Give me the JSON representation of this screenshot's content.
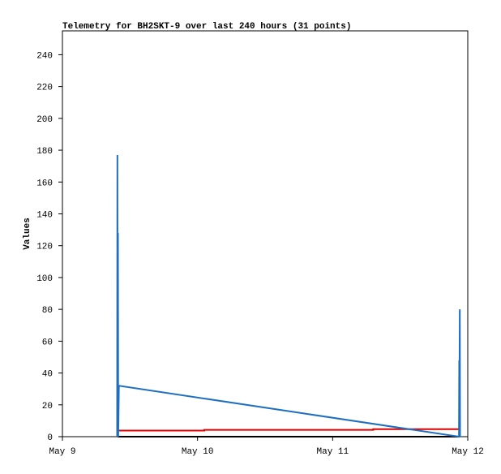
{
  "chart_data": {
    "type": "line",
    "title": "Telemetry for BH2SKT-9 over last 240 hours (31 points)",
    "y_label": "Values",
    "xlim": [
      0,
      3
    ],
    "xticks": [
      {
        "value": 0,
        "label": "May 9"
      },
      {
        "value": 1,
        "label": "May 10"
      },
      {
        "value": 2,
        "label": "May 11"
      },
      {
        "value": 3,
        "label": "May 12"
      }
    ],
    "ylim": [
      0,
      255
    ],
    "yticks": [
      0,
      20,
      40,
      60,
      80,
      100,
      120,
      140,
      160,
      180,
      200,
      220,
      240
    ],
    "grid": false,
    "series": [
      {
        "color": "#000000",
        "x": [
          0.41,
          2.94
        ],
        "values": [
          0,
          0
        ]
      },
      {
        "color": "#dd0000",
        "x": [
          0.41,
          1.05,
          1.05,
          2.3,
          2.3,
          2.94
        ],
        "values": [
          3.8,
          3.8,
          4.3,
          4.3,
          4.7,
          4.7
        ]
      },
      {
        "color": "#1f6fc1",
        "x": [
          0.405,
          0.407,
          0.409,
          0.411,
          0.413,
          0.418,
          2.935,
          2.937,
          2.939,
          2.941,
          2.943
        ],
        "values": [
          0,
          177,
          0,
          128,
          0,
          32,
          0,
          48,
          40,
          80,
          0
        ]
      }
    ]
  }
}
